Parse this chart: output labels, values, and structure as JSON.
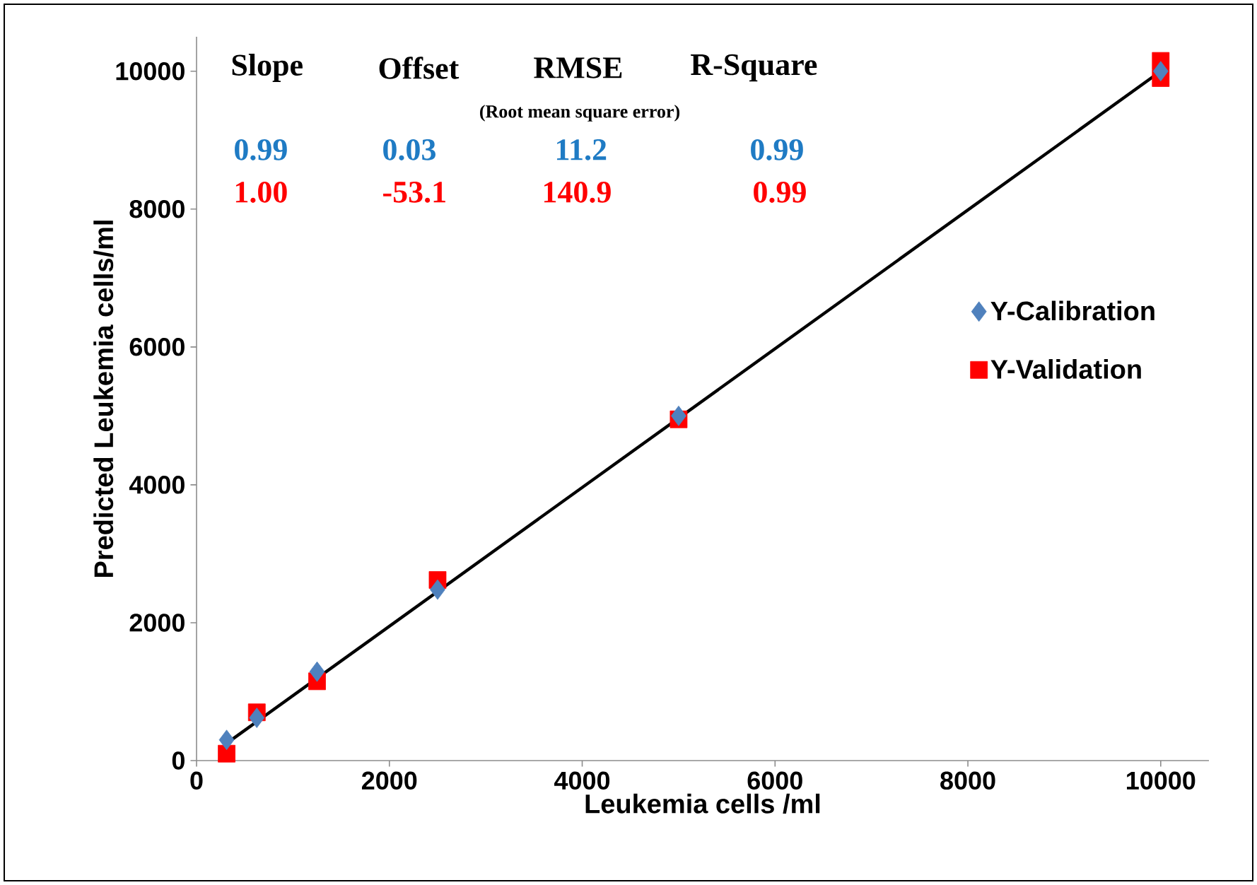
{
  "chart_data": {
    "type": "scatter",
    "xlabel": "Leukemia cells /ml",
    "ylabel": "Predicted Leukemia cells/ml",
    "xlim": [
      0,
      10500
    ],
    "ylim": [
      0,
      10500
    ],
    "xticks": [
      0,
      2000,
      4000,
      6000,
      8000,
      10000
    ],
    "yticks": [
      0,
      2000,
      4000,
      6000,
      8000,
      10000
    ],
    "grid": false,
    "legend": "right",
    "series": [
      {
        "name": "Y-Calibration",
        "color": "#4f81bd",
        "marker": "diamond",
        "x": [
          312,
          625,
          1250,
          2500,
          5000,
          10000
        ],
        "values": [
          300,
          620,
          1290,
          2480,
          5000,
          10000
        ]
      },
      {
        "name": "Y-Validation",
        "color": "#ff0000",
        "marker": "square",
        "x": [
          312,
          625,
          1250,
          2500,
          5000,
          10000,
          10000
        ],
        "values": [
          100,
          700,
          1150,
          2620,
          4950,
          10150,
          9900
        ]
      },
      {
        "type": "line",
        "color": "#000000",
        "marker": "none",
        "line_style": "solid",
        "x": [
          312,
          10000
        ],
        "values": [
          250,
          10000
        ]
      }
    ],
    "annotations": [
      "Slope",
      "Offset",
      "RMSE",
      "R-Square",
      "(Root mean square error)",
      "0.99",
      "0.03",
      "11.2",
      "0.99",
      "1.00",
      "-53.1",
      "140.9",
      "0.99"
    ]
  }
}
